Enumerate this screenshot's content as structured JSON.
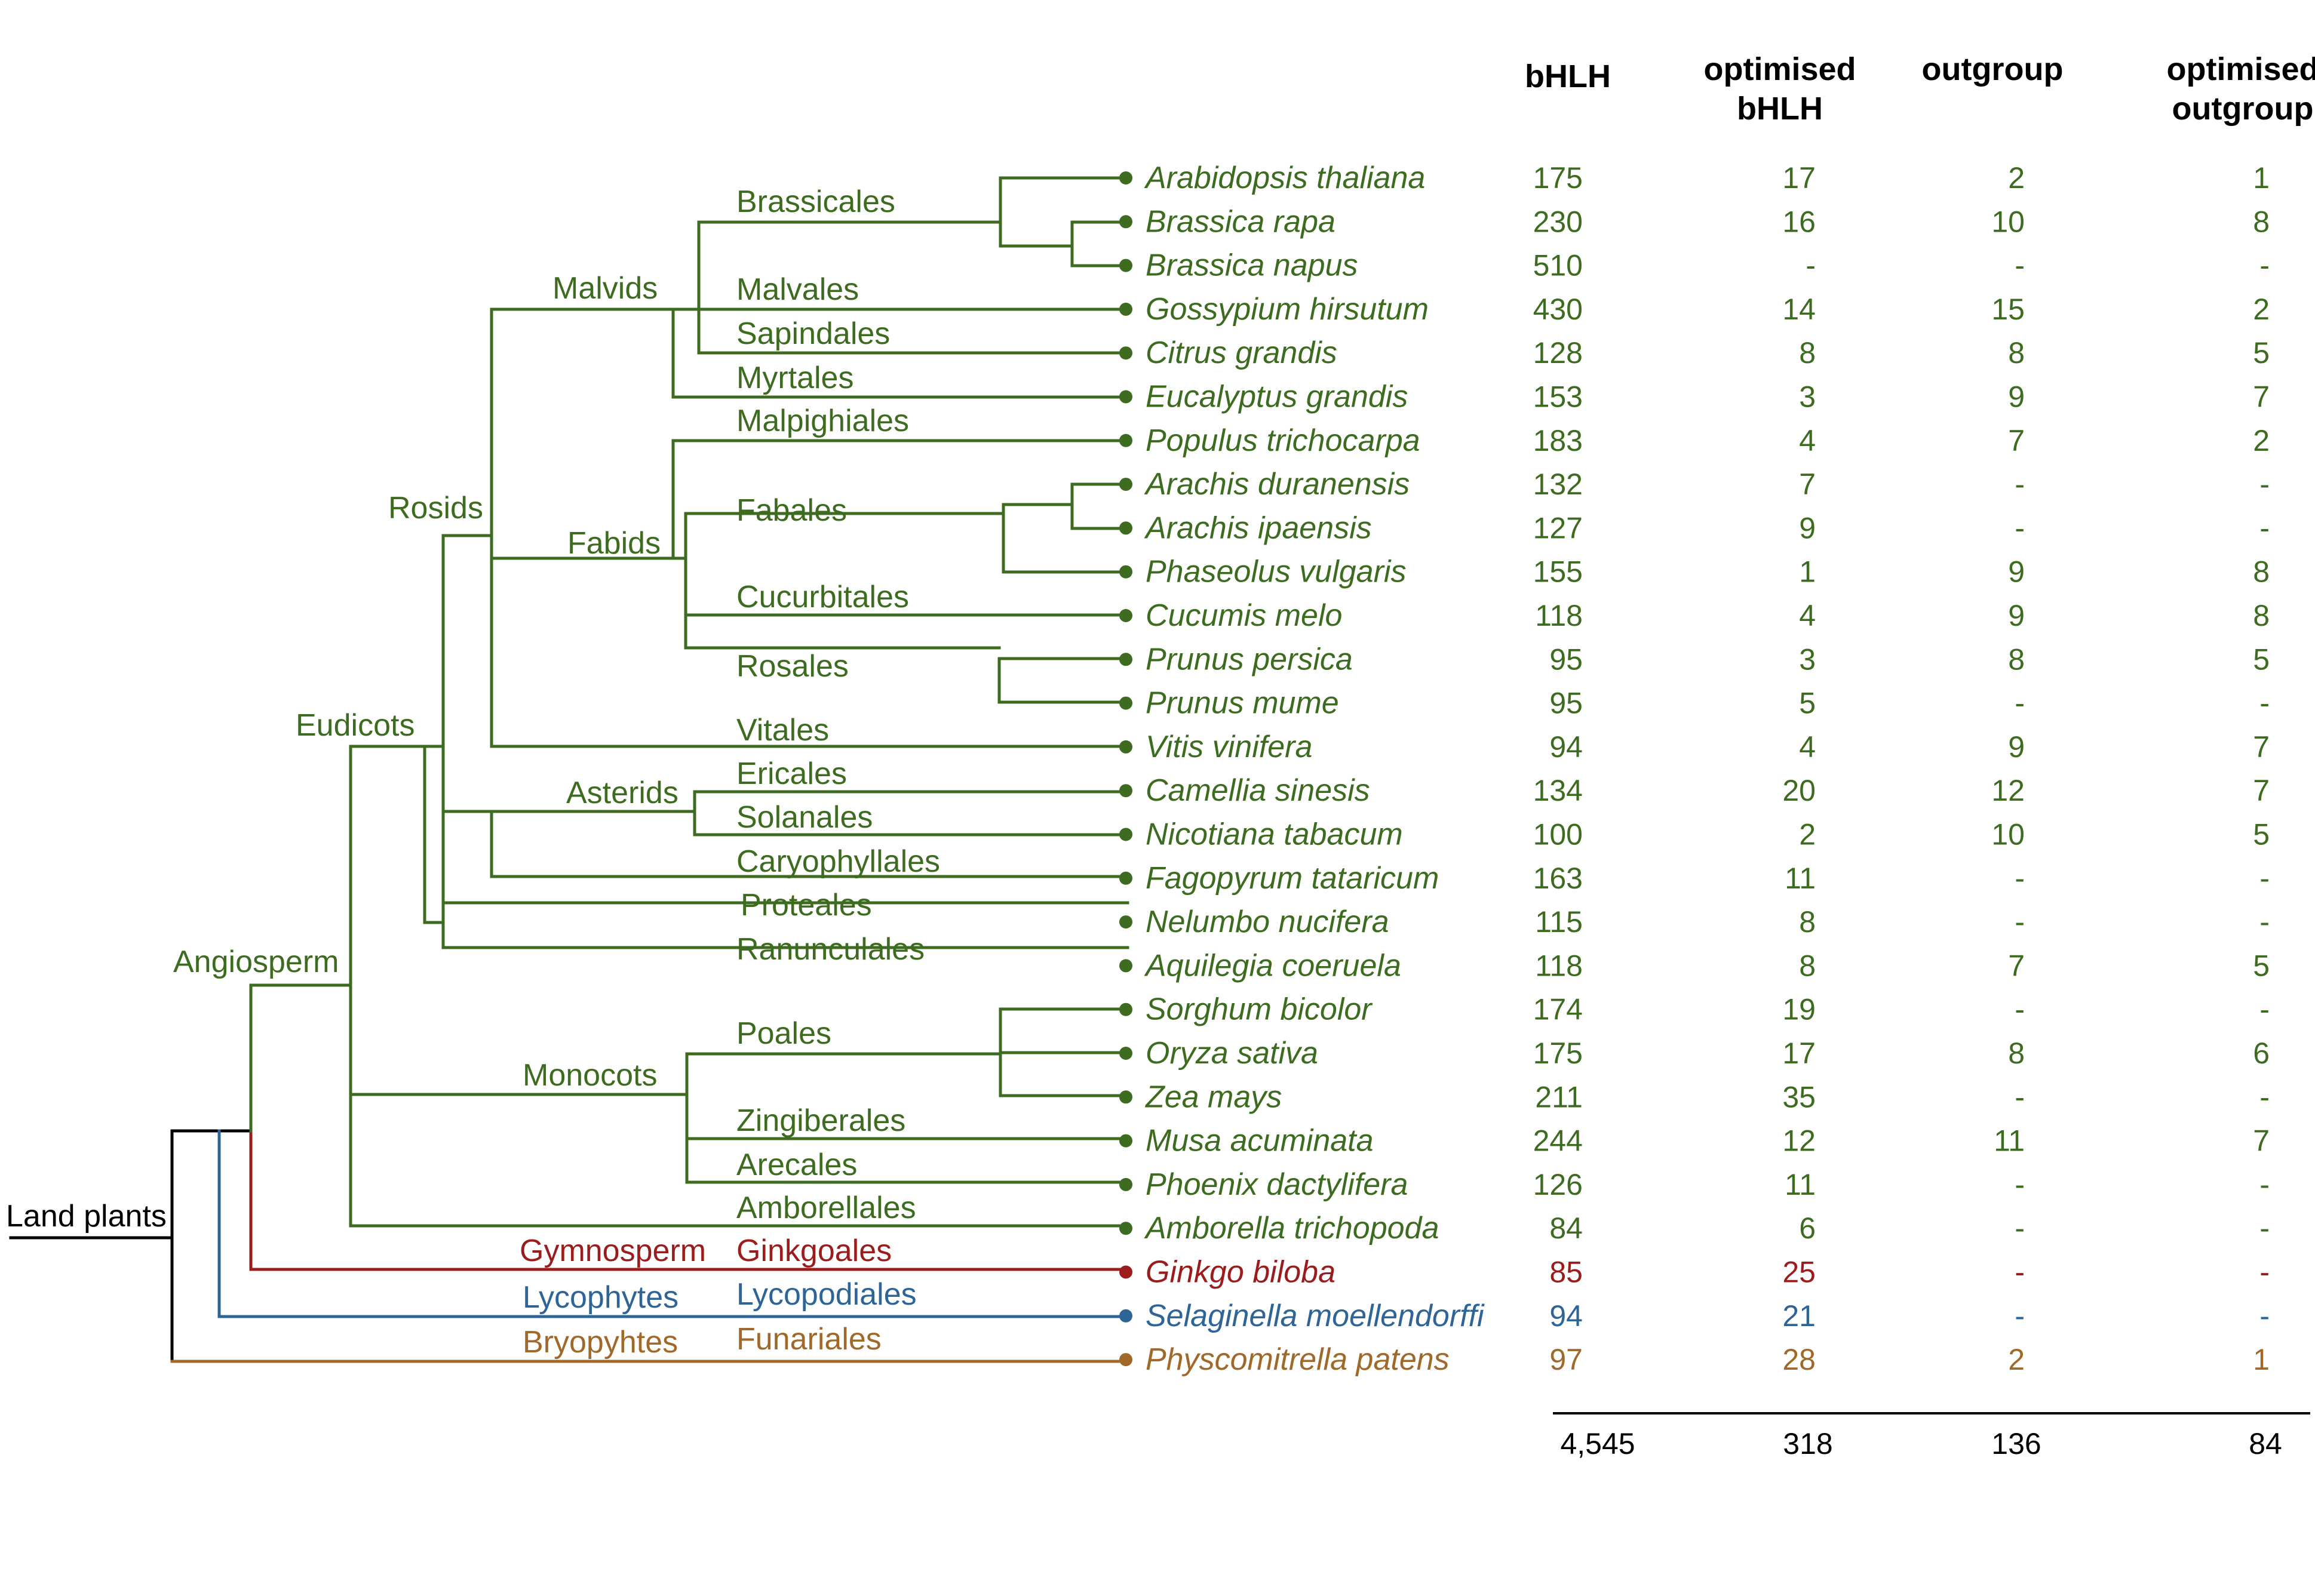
{
  "colors": {
    "angiosperm": "#3d6b1f",
    "gymnosperm": "#9b1c1c",
    "lycophyte": "#2e6496",
    "bryophyte": "#a0692a",
    "root": "#000000"
  },
  "headers": {
    "bhlh": "bHLH",
    "opt_bhlh": [
      "optimised",
      "bHLH"
    ],
    "outgroup": "outgroup",
    "opt_outgroup": [
      "optimised",
      "outgroup"
    ]
  },
  "clades": {
    "land_plants": "Land plants",
    "angiosperm": "Angiosperm",
    "eudicots": "Eudicots",
    "rosids": "Rosids",
    "malvids": "Malvids",
    "fabids": "Fabids",
    "asterids": "Asterids",
    "monocots": "Monocots",
    "gymnosperm": "Gymnosperm",
    "lycophytes": "Lycophytes",
    "bryophytes": "Bryopyhtes"
  },
  "orders": {
    "brassicales": "Brassicales",
    "malvales": "Malvales",
    "sapindales": "Sapindales",
    "myrtales": "Myrtales",
    "malpighiales": "Malpighiales",
    "fabales": "Fabales",
    "cucurbitales": "Cucurbitales",
    "rosales": "Rosales",
    "vitales": "Vitales",
    "ericales": "Ericales",
    "solanales": "Solanales",
    "caryophyllales": "Caryophyllales",
    "proteales": "Proteales",
    "ranunculales": "Ranunculales",
    "poales": "Poales",
    "zingiberales": "Zingiberales",
    "arecales": "Arecales",
    "amborellales": "Amborellales",
    "ginkgoales": "Ginkgoales",
    "lycopodiales": "Lycopodiales",
    "funariales": "Funariales"
  },
  "species": [
    {
      "name": "Arabidopsis thaliana",
      "group": "angiosperm",
      "bhlh": "175",
      "opt_bhlh": "17",
      "outgroup": "2",
      "opt_outgroup": "1"
    },
    {
      "name": "Brassica rapa",
      "group": "angiosperm",
      "bhlh": "230",
      "opt_bhlh": "16",
      "outgroup": "10",
      "opt_outgroup": "8"
    },
    {
      "name": "Brassica napus",
      "group": "angiosperm",
      "bhlh": "510",
      "opt_bhlh": "-",
      "outgroup": "-",
      "opt_outgroup": "-"
    },
    {
      "name": "Gossypium hirsutum",
      "group": "angiosperm",
      "bhlh": "430",
      "opt_bhlh": "14",
      "outgroup": "15",
      "opt_outgroup": "2"
    },
    {
      "name": "Citrus grandis",
      "group": "angiosperm",
      "bhlh": "128",
      "opt_bhlh": "8",
      "outgroup": "8",
      "opt_outgroup": "5"
    },
    {
      "name": "Eucalyptus grandis",
      "group": "angiosperm",
      "bhlh": "153",
      "opt_bhlh": "3",
      "outgroup": "9",
      "opt_outgroup": "7"
    },
    {
      "name": "Populus trichocarpa",
      "group": "angiosperm",
      "bhlh": "183",
      "opt_bhlh": "4",
      "outgroup": "7",
      "opt_outgroup": "2"
    },
    {
      "name": "Arachis duranensis",
      "group": "angiosperm",
      "bhlh": "132",
      "opt_bhlh": "7",
      "outgroup": "-",
      "opt_outgroup": "-"
    },
    {
      "name": "Arachis ipaensis",
      "group": "angiosperm",
      "bhlh": "127",
      "opt_bhlh": "9",
      "outgroup": "-",
      "opt_outgroup": "-"
    },
    {
      "name": "Phaseolus vulgaris",
      "group": "angiosperm",
      "bhlh": "155",
      "opt_bhlh": "1",
      "outgroup": "9",
      "opt_outgroup": "8"
    },
    {
      "name": "Cucumis melo",
      "group": "angiosperm",
      "bhlh": "118",
      "opt_bhlh": "4",
      "outgroup": "9",
      "opt_outgroup": "8"
    },
    {
      "name": "Prunus persica",
      "group": "angiosperm",
      "bhlh": "95",
      "opt_bhlh": "3",
      "outgroup": "8",
      "opt_outgroup": "5"
    },
    {
      "name": "Prunus mume",
      "group": "angiosperm",
      "bhlh": "95",
      "opt_bhlh": "5",
      "outgroup": "-",
      "opt_outgroup": "-"
    },
    {
      "name": "Vitis vinifera",
      "group": "angiosperm",
      "bhlh": "94",
      "opt_bhlh": "4",
      "outgroup": "9",
      "opt_outgroup": "7"
    },
    {
      "name": "Camellia sinesis",
      "group": "angiosperm",
      "bhlh": "134",
      "opt_bhlh": "20",
      "outgroup": "12",
      "opt_outgroup": "7"
    },
    {
      "name": "Nicotiana tabacum",
      "group": "angiosperm",
      "bhlh": "100",
      "opt_bhlh": "2",
      "outgroup": "10",
      "opt_outgroup": "5"
    },
    {
      "name": "Fagopyrum tataricum",
      "group": "angiosperm",
      "bhlh": "163",
      "opt_bhlh": "11",
      "outgroup": "-",
      "opt_outgroup": "-"
    },
    {
      "name": "Nelumbo nucifera",
      "group": "angiosperm",
      "bhlh": "115",
      "opt_bhlh": "8",
      "outgroup": "-",
      "opt_outgroup": "-"
    },
    {
      "name": "Aquilegia coeruela",
      "group": "angiosperm",
      "bhlh": "118",
      "opt_bhlh": "8",
      "outgroup": "7",
      "opt_outgroup": "5"
    },
    {
      "name": "Sorghum bicolor",
      "group": "angiosperm",
      "bhlh": "174",
      "opt_bhlh": "19",
      "outgroup": "-",
      "opt_outgroup": "-"
    },
    {
      "name": "Oryza sativa",
      "group": "angiosperm",
      "bhlh": "175",
      "opt_bhlh": "17",
      "outgroup": "8",
      "opt_outgroup": "6"
    },
    {
      "name": "Zea mays",
      "group": "angiosperm",
      "bhlh": "211",
      "opt_bhlh": "35",
      "outgroup": "-",
      "opt_outgroup": "-"
    },
    {
      "name": "Musa acuminata",
      "group": "angiosperm",
      "bhlh": "244",
      "opt_bhlh": "12",
      "outgroup": "11",
      "opt_outgroup": "7"
    },
    {
      "name": "Phoenix dactylifera",
      "group": "angiosperm",
      "bhlh": "126",
      "opt_bhlh": "11",
      "outgroup": "-",
      "opt_outgroup": "-"
    },
    {
      "name": "Amborella trichopoda",
      "group": "angiosperm",
      "bhlh": "84",
      "opt_bhlh": "6",
      "outgroup": "-",
      "opt_outgroup": "-"
    },
    {
      "name": "Ginkgo biloba",
      "group": "gymnosperm",
      "bhlh": "85",
      "opt_bhlh": "25",
      "outgroup": "-",
      "opt_outgroup": "-"
    },
    {
      "name": "Selaginella moellendorffi",
      "group": "lycophyte",
      "bhlh": "94",
      "opt_bhlh": "21",
      "outgroup": "-",
      "opt_outgroup": "-"
    },
    {
      "name": "Physcomitrella patens",
      "group": "bryophyte",
      "bhlh": "97",
      "opt_bhlh": "28",
      "outgroup": "2",
      "opt_outgroup": "1"
    }
  ],
  "totals": {
    "bhlh": "4,545",
    "opt_bhlh": "318",
    "outgroup": "136",
    "opt_outgroup": "84"
  }
}
